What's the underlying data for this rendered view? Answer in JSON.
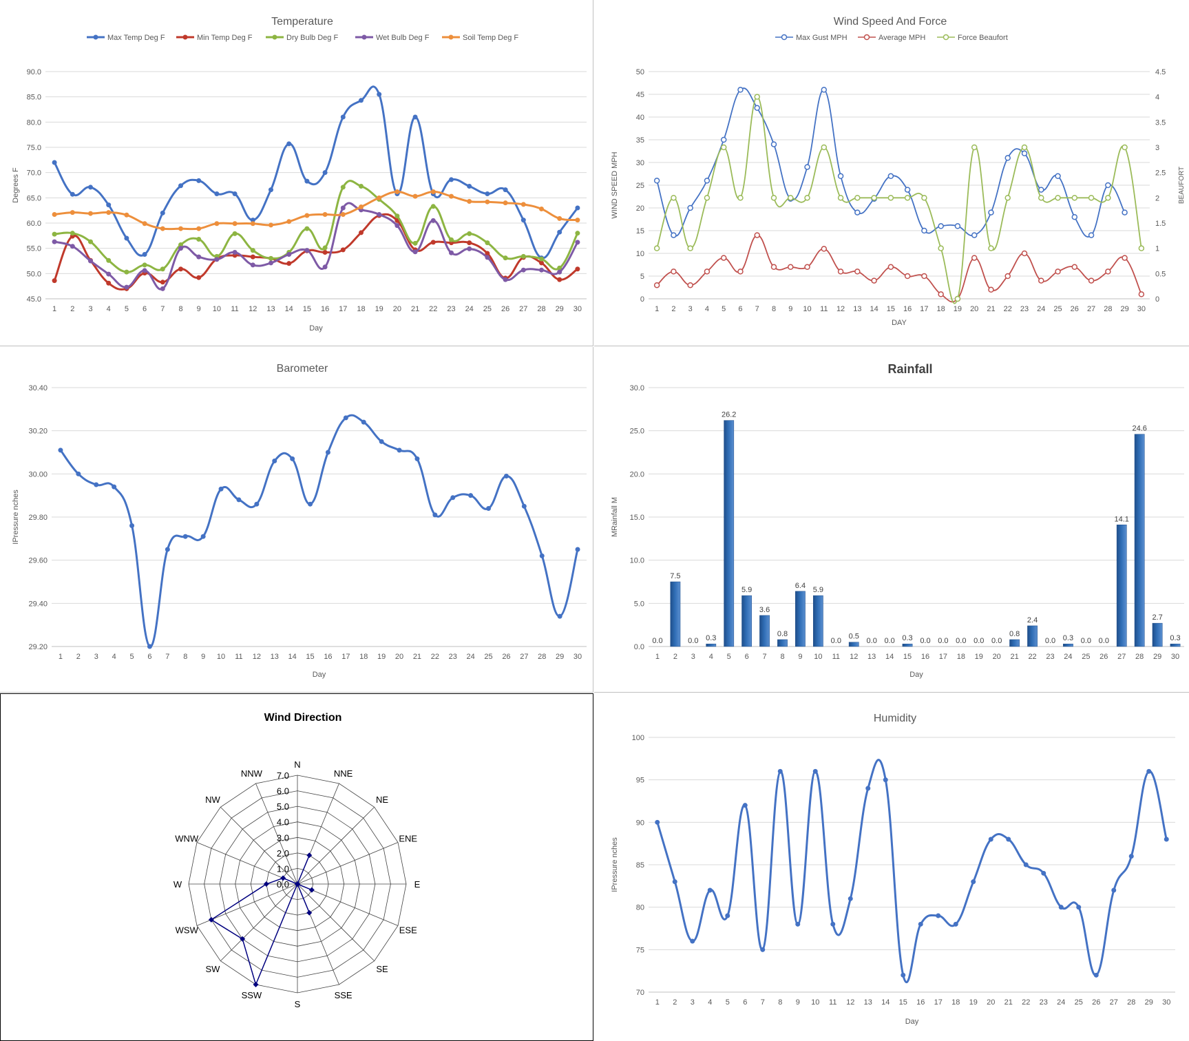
{
  "chart_data": [
    {
      "id": "temp",
      "type": "line",
      "title": "Temperature",
      "xlabel": "Day",
      "ylabel": "Degrees F",
      "ylim": [
        45,
        90
      ],
      "yticks": [
        "45.0",
        "50.0",
        "55.0",
        "60.0",
        "65.0",
        "70.0",
        "75.0",
        "80.0",
        "85.0",
        "90.0"
      ],
      "grid": true,
      "legend": "top",
      "x": [
        1,
        2,
        3,
        4,
        5,
        6,
        7,
        8,
        9,
        10,
        11,
        12,
        13,
        14,
        15,
        16,
        17,
        18,
        19,
        20,
        21,
        22,
        23,
        24,
        25,
        26,
        27,
        28,
        29,
        30
      ],
      "series": [
        {
          "name": "Max Temp Deg F",
          "color": "#4472c4",
          "values": [
            72.0,
            65.7,
            67.1,
            63.6,
            57.0,
            53.8,
            62.0,
            67.4,
            68.4,
            65.8,
            65.8,
            60.6,
            66.6,
            75.7,
            68.3,
            70.0,
            81.0,
            84.3,
            85.5,
            65.8,
            81.0,
            65.8,
            68.6,
            67.3,
            65.8,
            66.6,
            60.6,
            53.1,
            58.2,
            63.0
          ]
        },
        {
          "name": "Min Temp Deg F",
          "color": "#c0392b",
          "values": [
            48.6,
            57.4,
            52.6,
            48.1,
            47.0,
            50.1,
            48.3,
            50.9,
            49.2,
            52.9,
            53.6,
            53.3,
            53.0,
            52.0,
            54.5,
            54.2,
            54.7,
            58.1,
            61.5,
            60.5,
            54.7,
            56.2,
            56.1,
            56.1,
            54.0,
            49.1,
            53.2,
            52.1,
            48.8,
            50.9
          ]
        },
        {
          "name": "Dry Bulb Deg F",
          "color": "#8db542",
          "values": [
            57.8,
            58.0,
            56.3,
            52.6,
            50.3,
            51.7,
            50.9,
            55.7,
            56.8,
            53.4,
            57.9,
            54.6,
            53.0,
            54.2,
            58.9,
            55.1,
            67.1,
            67.3,
            64.7,
            61.4,
            56.0,
            63.3,
            56.7,
            57.9,
            56.1,
            53.1,
            53.4,
            52.9,
            51.1,
            58.0
          ]
        },
        {
          "name": "Wet Bulb Deg F",
          "color": "#7e5aa6",
          "values": [
            56.3,
            55.4,
            52.5,
            49.9,
            47.3,
            50.6,
            47.0,
            55.0,
            53.3,
            52.8,
            54.2,
            51.7,
            52.1,
            53.8,
            54.6,
            51.3,
            63.0,
            62.6,
            61.7,
            59.5,
            54.3,
            60.5,
            54.1,
            54.9,
            53.2,
            48.8,
            50.7,
            50.7,
            50.3,
            56.2
          ]
        },
        {
          "name": "Soil Temp Deg F",
          "color": "#ed8f3c",
          "values": [
            61.7,
            62.1,
            61.9,
            62.1,
            61.6,
            59.9,
            58.9,
            58.9,
            58.9,
            59.9,
            59.9,
            59.9,
            59.6,
            60.3,
            61.5,
            61.7,
            61.7,
            63.2,
            65.0,
            66.2,
            65.3,
            66.2,
            65.3,
            64.3,
            64.2,
            64.0,
            63.7,
            62.8,
            60.9,
            60.6
          ]
        }
      ]
    },
    {
      "id": "wind",
      "type": "line",
      "title": "Wind Speed And Force",
      "xlabel": "DAY",
      "ylabel": "WIND SPEED MPH",
      "y2label": "BEAUFORT",
      "ylim": [
        0,
        50
      ],
      "y2lim": [
        0,
        4.5
      ],
      "yticks": [
        "0",
        "5",
        "10",
        "15",
        "20",
        "25",
        "30",
        "35",
        "40",
        "45",
        "50"
      ],
      "y2ticks": [
        "0",
        "0.5",
        "1",
        "1.5",
        "2",
        "2.5",
        "3",
        "3.5",
        "4",
        "4.5"
      ],
      "grid": true,
      "legend": "top",
      "x": [
        1,
        2,
        3,
        4,
        5,
        6,
        7,
        8,
        9,
        10,
        11,
        12,
        13,
        14,
        15,
        16,
        17,
        18,
        19,
        20,
        21,
        22,
        23,
        24,
        25,
        26,
        27,
        28,
        29,
        30
      ],
      "series": [
        {
          "name": "Max Gust MPH",
          "color": "#4472c4",
          "axis": "left",
          "values": [
            26,
            14,
            20,
            26,
            35,
            46,
            42,
            34,
            22,
            29,
            46,
            27,
            19,
            22,
            27,
            24,
            15,
            16,
            16,
            14,
            19,
            31,
            32,
            24,
            27,
            18,
            14,
            25,
            19,
            null
          ]
        },
        {
          "name": "Average MPH",
          "color": "#c0504d",
          "axis": "left",
          "values": [
            3,
            6,
            3,
            6,
            9,
            6,
            14,
            7,
            7,
            7,
            11,
            6,
            6,
            4,
            7,
            5,
            5,
            1,
            0,
            9,
            2,
            5,
            10,
            4,
            6,
            7,
            4,
            6,
            9,
            1
          ]
        },
        {
          "name": "Force Beaufort",
          "color": "#9bbb59",
          "axis": "right",
          "values": [
            1,
            2,
            1,
            2,
            3,
            2,
            4,
            2,
            2,
            2,
            3,
            2,
            2,
            2,
            2,
            2,
            2,
            1,
            0,
            3,
            1,
            2,
            3,
            2,
            2,
            2,
            2,
            2,
            3,
            1
          ]
        }
      ]
    },
    {
      "id": "baro",
      "type": "line",
      "title": "Barometer",
      "xlabel": "Day",
      "ylabel": "IPressure nches",
      "ylim": [
        29.2,
        30.4
      ],
      "yticks": [
        "29.20",
        "29.40",
        "29.60",
        "29.80",
        "30.00",
        "30.20",
        "30.40"
      ],
      "grid": true,
      "x": [
        1,
        2,
        3,
        4,
        5,
        6,
        7,
        8,
        9,
        10,
        11,
        12,
        13,
        14,
        15,
        16,
        17,
        18,
        19,
        20,
        21,
        22,
        23,
        24,
        25,
        26,
        27,
        28,
        29,
        30
      ],
      "series": [
        {
          "name": "",
          "color": "#4472c4",
          "values": [
            30.11,
            30.0,
            29.95,
            29.94,
            29.76,
            29.2,
            29.65,
            29.71,
            29.71,
            29.93,
            29.88,
            29.86,
            30.06,
            30.07,
            29.86,
            30.1,
            30.26,
            30.24,
            30.15,
            30.11,
            30.07,
            29.81,
            29.89,
            29.9,
            29.84,
            29.99,
            29.85,
            29.62,
            29.34,
            29.65
          ]
        }
      ]
    },
    {
      "id": "rain",
      "type": "bar",
      "title": "Rainfall",
      "xlabel": "Day",
      "ylabel": "MRainfall M",
      "ylim": [
        0,
        30
      ],
      "yticks": [
        "0.0",
        "5.0",
        "10.0",
        "15.0",
        "20.0",
        "25.0",
        "30.0"
      ],
      "grid": true,
      "categories": [
        "1",
        "2",
        "3",
        "4",
        "5",
        "6",
        "7",
        "8",
        "9",
        "10",
        "11",
        "12",
        "13",
        "14",
        "15",
        "16",
        "17",
        "18",
        "19",
        "20",
        "21",
        "22",
        "23",
        "24",
        "25",
        "26",
        "27",
        "28",
        "29",
        "30"
      ],
      "values": [
        0.0,
        7.5,
        0.0,
        0.3,
        26.2,
        5.9,
        3.6,
        0.8,
        6.4,
        5.9,
        0.0,
        0.5,
        0.0,
        0.0,
        0.3,
        0.0,
        0.0,
        0.0,
        0.0,
        0.0,
        0.8,
        2.4,
        0.0,
        0.3,
        0.0,
        0.0,
        14.1,
        24.6,
        2.7,
        0.3
      ],
      "labels": [
        "0.0",
        "7.5",
        "0.0",
        "0.3",
        "26.2",
        "5.9",
        "3.6",
        "0.8",
        "6.4",
        "5.9",
        "0.0",
        "0.5",
        "0.0",
        "0.0",
        "0.3",
        "0.0",
        "0.0",
        "0.0",
        "0.0",
        "0.0",
        "0.8",
        "2.4",
        "0.0",
        "0.3",
        "0.0",
        "0.0",
        "14.1",
        "24.6",
        "2.7",
        "0.3"
      ],
      "color": "#2f6db5"
    },
    {
      "id": "dir",
      "type": "radar",
      "title": "Wind Direction",
      "rlim": [
        0,
        7
      ],
      "rticks": [
        "0.0",
        "1.0",
        "2.0",
        "3.0",
        "4.0",
        "5.0",
        "6.0",
        "7.0"
      ],
      "categories": [
        "N",
        "NNE",
        "NE",
        "ENE",
        "E",
        "ESE",
        "SE",
        "SSE",
        "S",
        "SSW",
        "SW",
        "WSW",
        "W",
        "WNW",
        "NW",
        "NNW"
      ],
      "values": [
        0,
        2,
        0,
        0,
        0,
        1,
        0,
        2,
        0,
        7,
        5,
        6,
        2,
        1,
        0,
        0
      ],
      "color": "#00007f"
    },
    {
      "id": "hum",
      "type": "line",
      "title": "Humidity",
      "xlabel": "Day",
      "ylabel": "IPressure nches",
      "ylim": [
        70,
        100
      ],
      "yticks": [
        "70",
        "75",
        "80",
        "85",
        "90",
        "95",
        "100"
      ],
      "grid": true,
      "x": [
        1,
        2,
        3,
        4,
        5,
        6,
        7,
        8,
        9,
        10,
        11,
        12,
        13,
        14,
        15,
        16,
        17,
        18,
        19,
        20,
        21,
        22,
        23,
        24,
        25,
        26,
        27,
        28,
        29,
        30
      ],
      "series": [
        {
          "name": "",
          "color": "#4472c4",
          "values": [
            90,
            83,
            76,
            82,
            79,
            92,
            75,
            96,
            78,
            96,
            78,
            81,
            94,
            95,
            72,
            78,
            79,
            78,
            83,
            88,
            88,
            85,
            84,
            80,
            80,
            72,
            82,
            86,
            96,
            88
          ]
        }
      ]
    }
  ]
}
